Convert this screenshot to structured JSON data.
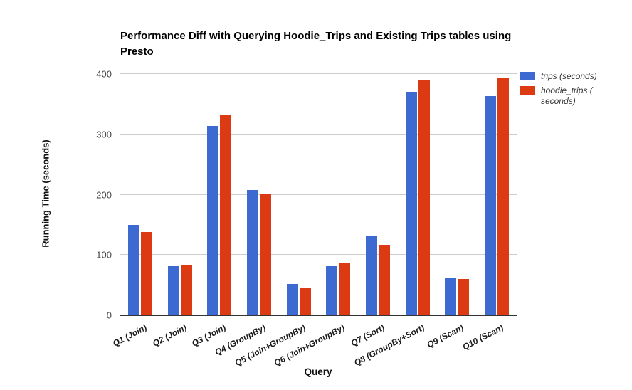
{
  "chart_data": {
    "type": "bar",
    "title": "Performance Diff with Querying Hoodie_Trips and Existing Trips tables using Presto",
    "xlabel": "Query",
    "ylabel": "Running Time (seconds)",
    "categories": [
      "Q1 (Join)",
      "Q2 (Join)",
      "Q3 (Join)",
      "Q4 (GroupBy)",
      "Q5 (Join+GroupBy)",
      "Q6 (Join+GroupBy)",
      "Q7 (Sort)",
      "Q8 (GroupBy+Sort)",
      "Q9 (Scan)",
      "Q10 (Scan)"
    ],
    "series": [
      {
        "key": "trips",
        "name": "trips (seconds)",
        "color": "#3C6AD1",
        "values": [
          150,
          81,
          314,
          208,
          52,
          82,
          131,
          371,
          61,
          363
        ]
      },
      {
        "key": "hoodie_trips",
        "name": "hoodie_trips (seconds)",
        "color": "#DB3A12",
        "values": [
          138,
          84,
          333,
          202,
          46,
          86,
          117,
          390,
          60,
          393
        ]
      }
    ],
    "ylim": [
      0,
      400
    ],
    "yticks": [
      0,
      100,
      200,
      300,
      400
    ],
    "grid": true,
    "legend_position": "right"
  },
  "legend": {
    "items": [
      {
        "lines": [
          "trips (seconds)"
        ],
        "color": "#3C6AD1"
      },
      {
        "lines": [
          "hoodie_trips (",
          "seconds)"
        ],
        "color": "#DB3A12"
      }
    ]
  },
  "colors": {
    "background": "#FFFFFF",
    "grid": "#CCCCCC",
    "axis_line": "#333333",
    "title_text": "#000000",
    "tick_text": "#444444",
    "category_text": "#1A1A1A",
    "legend_text": "#333333"
  }
}
